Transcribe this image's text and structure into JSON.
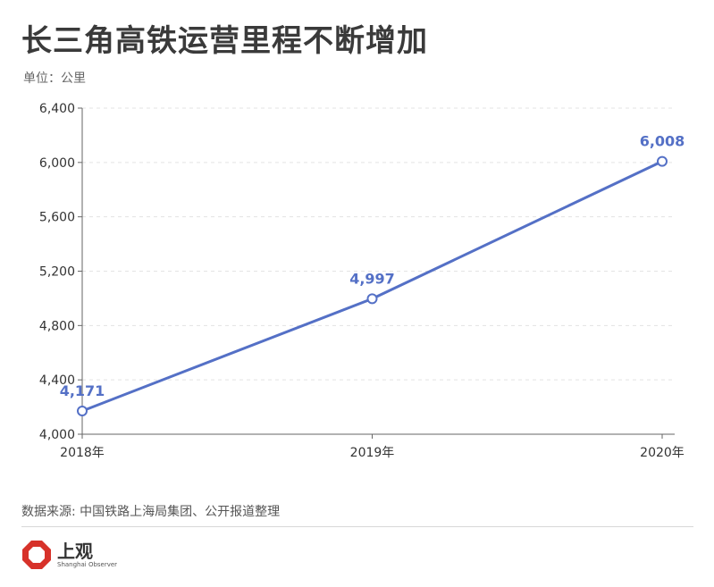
{
  "header": {
    "title": "长三角高铁运营里程不断增加",
    "unit": "单位：公里"
  },
  "footer": {
    "source": "数据来源: 中国铁路上海局集团、公开报道整理",
    "logo_cn": "上观",
    "logo_en": "Shanghai Observer"
  },
  "colors": {
    "line": "#5470c6",
    "logo": "#d7322a"
  },
  "chart_data": {
    "type": "line",
    "categories": [
      "2018年",
      "2019年",
      "2020年"
    ],
    "series": [
      {
        "values": [
          4171,
          4997,
          6008
        ],
        "labels": [
          "4,171",
          "4,997",
          "6,008"
        ]
      }
    ],
    "yticks": [
      4000,
      4400,
      4800,
      5200,
      5600,
      6000,
      6400
    ],
    "ytick_labels": [
      "4,000",
      "4,400",
      "4,800",
      "5,200",
      "5,600",
      "6,000",
      "6,400"
    ],
    "ylim": [
      4000,
      6400
    ],
    "grid": true
  }
}
